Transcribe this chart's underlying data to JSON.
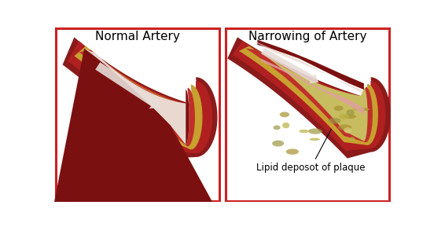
{
  "title_left": "Normal Artery",
  "title_right": "Narrowing of Artery",
  "label_plaque": "Lipid deposot of plaque",
  "bg_color": "#ffffff",
  "border_color": "#cc2222",
  "col_outer_red": "#8B1A1A",
  "col_mid_red": "#B02020",
  "col_inner_red": "#C0302A",
  "col_light_red": "#D04040",
  "col_pink": "#E8B0A8",
  "col_gold": "#C8A030",
  "col_gold_light": "#D4B060",
  "col_blood": "#7B1010",
  "col_arrow": "#E8DDD8",
  "col_plaque_yellow": "#C8BC60",
  "col_plaque_dark": "#A89030",
  "col_plaque_light": "#D8CC80",
  "col_plaque_green": "#9A9840",
  "font_title": 11,
  "font_label": 8.5
}
